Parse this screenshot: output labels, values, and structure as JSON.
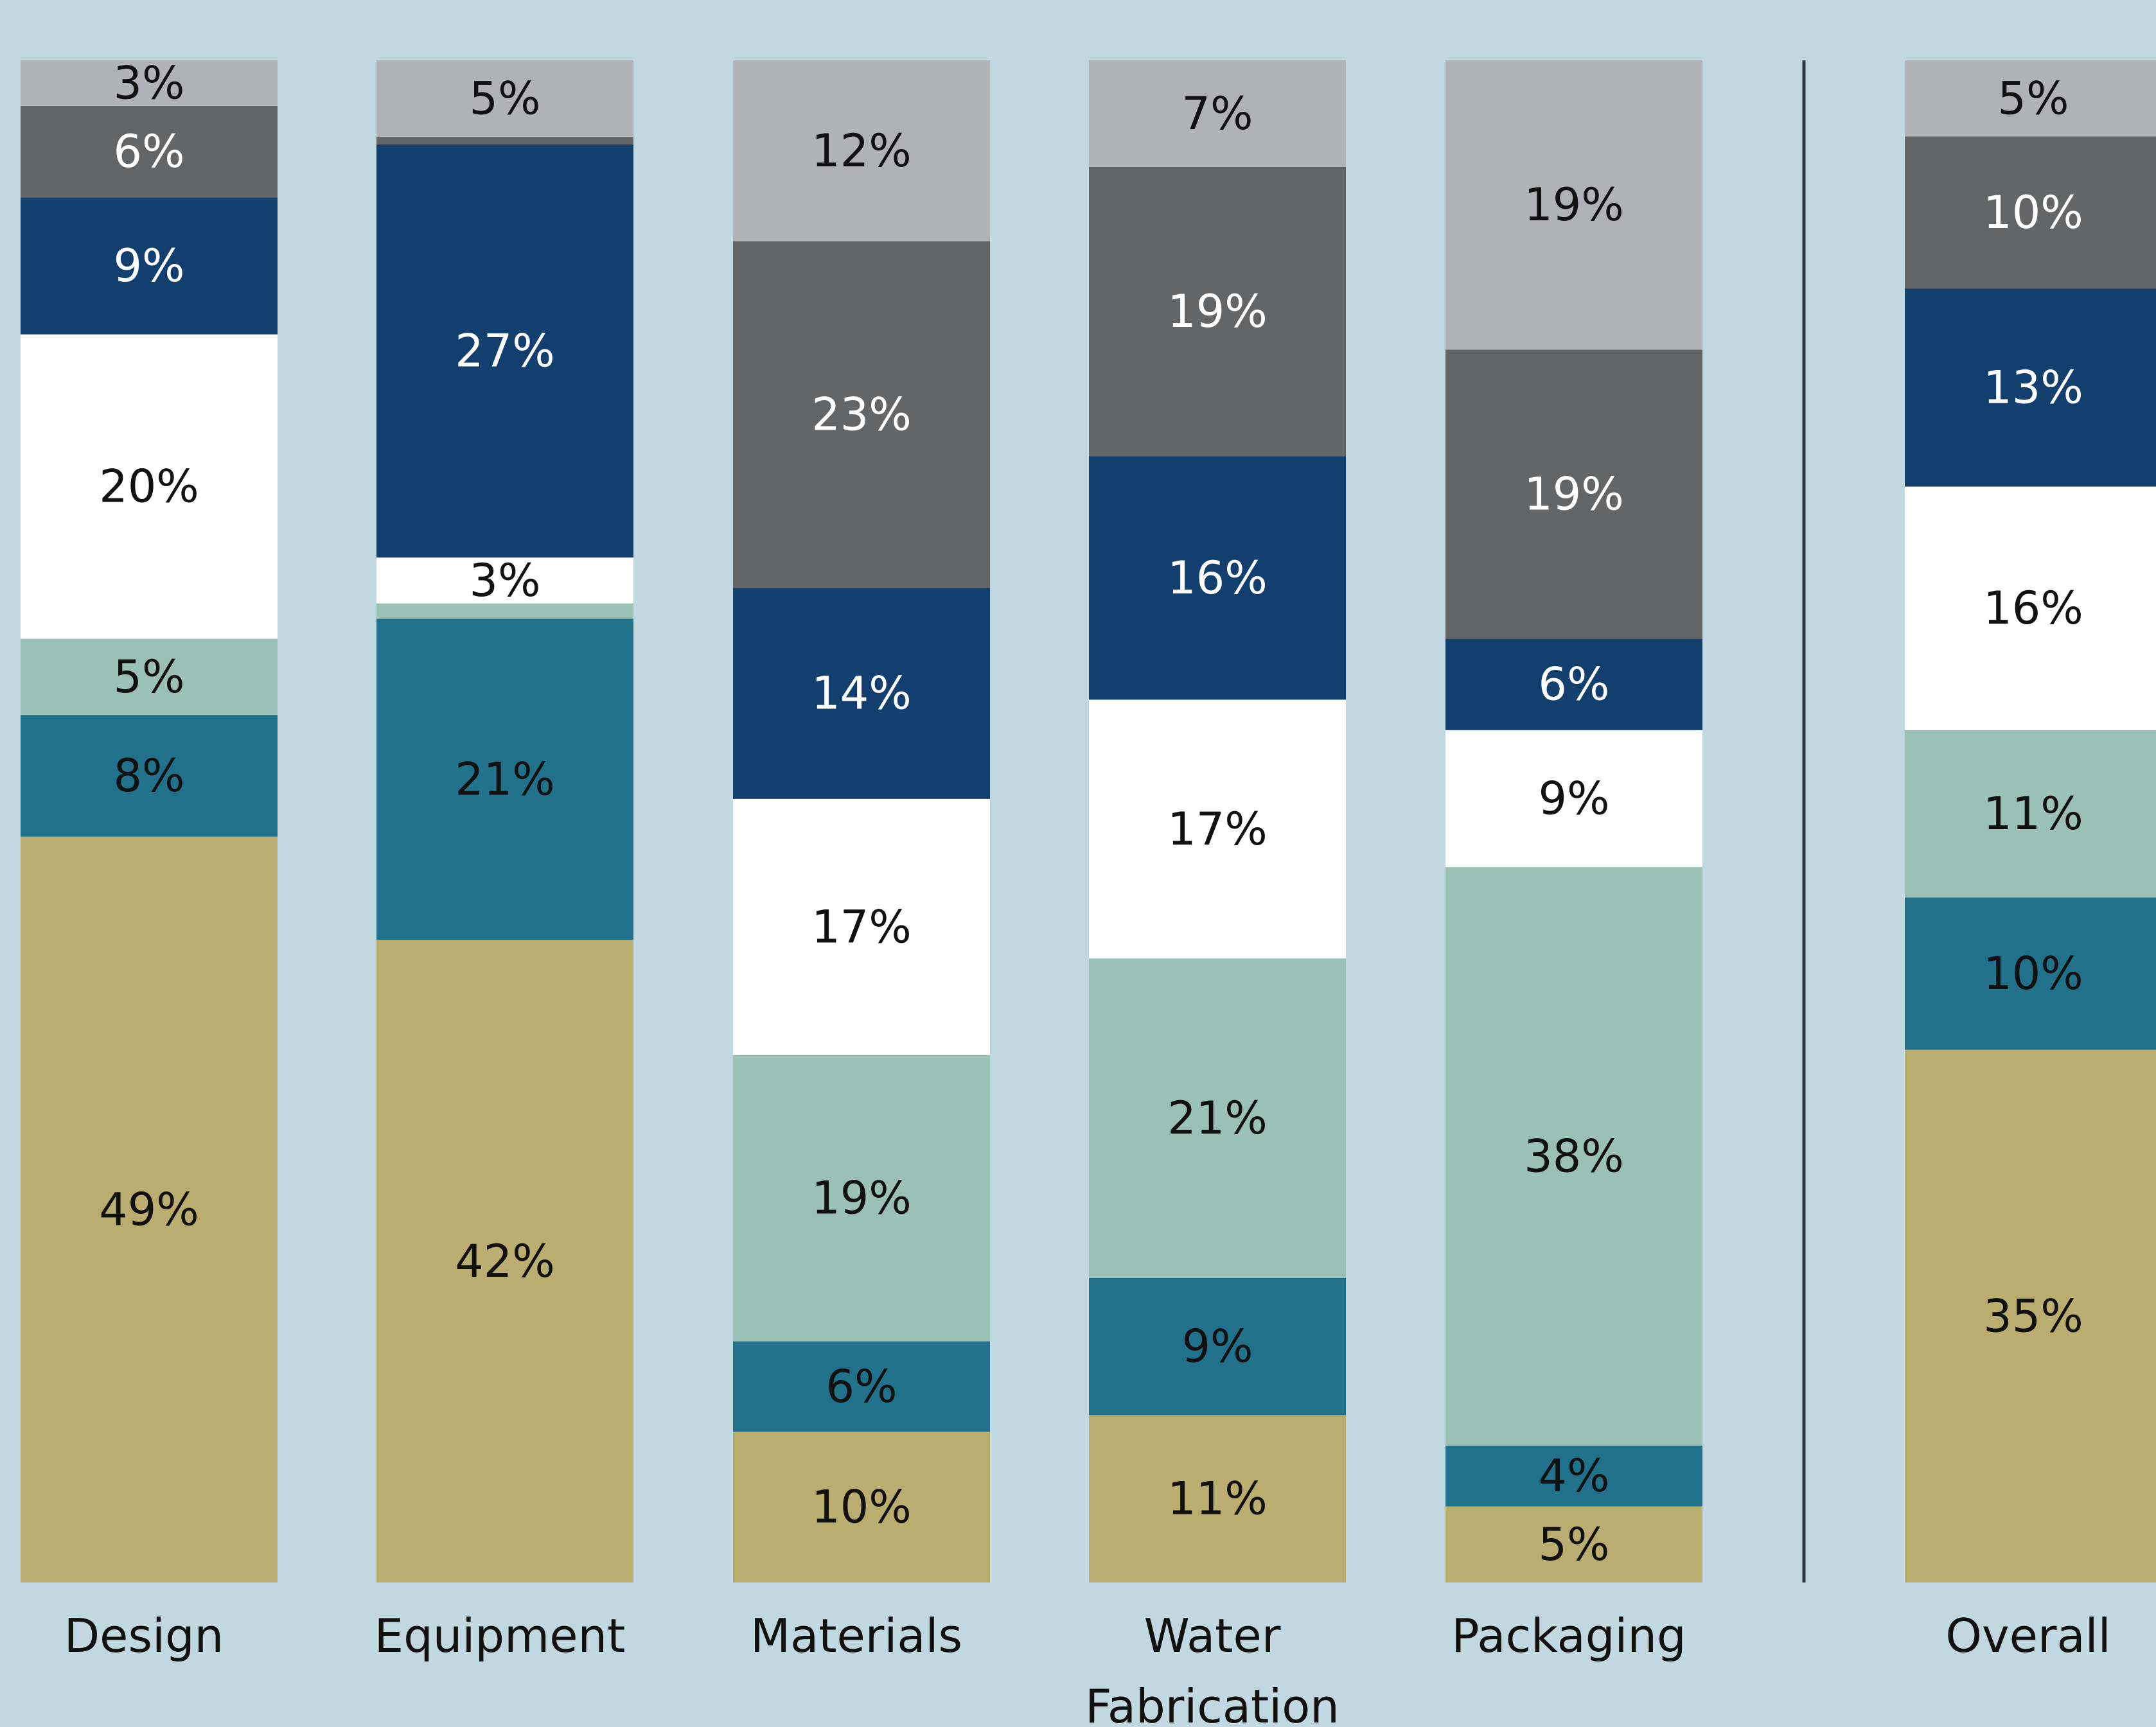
{
  "chart_data": {
    "type": "bar",
    "stacked": true,
    "normalized": true,
    "value_unit": "%",
    "categories": [
      "Design",
      "Equipment",
      "Materials",
      "Water Fabrication",
      "Packaging",
      "Overall"
    ],
    "category_label_lines": [
      [
        "Design"
      ],
      [
        "Equipment"
      ],
      [
        "Materials"
      ],
      [
        "Water",
        "Fabrication"
      ],
      [
        "Packaging"
      ],
      [
        "Overall"
      ]
    ],
    "separator_before_category": "Overall",
    "legend": "none",
    "grid": false,
    "series": [
      {
        "color": "#b9ad6f",
        "label_color": "#111111",
        "values": [
          49,
          42,
          10,
          11,
          5,
          35
        ]
      },
      {
        "color": "#22718b",
        "label_color": "#111111",
        "values": [
          8,
          21,
          6,
          9,
          4,
          10
        ]
      },
      {
        "color": "#9bc1b7",
        "label_color": "#111111",
        "values": [
          5,
          1,
          19,
          21,
          38,
          11
        ]
      },
      {
        "color": "#ffffff",
        "label_color": "#111111",
        "values": [
          20,
          3,
          17,
          17,
          9,
          16
        ]
      },
      {
        "color": "#133f6e",
        "label_color": "#ffffff",
        "values": [
          9,
          27,
          14,
          16,
          6,
          13
        ]
      },
      {
        "color": "#646567",
        "label_color": "#ffffff",
        "values": [
          6,
          0.5,
          23,
          19,
          19,
          10
        ]
      },
      {
        "color": "#b1b2b5",
        "label_color": "#111111",
        "values": [
          3,
          5,
          12,
          7,
          19,
          5
        ]
      }
    ],
    "hidden_labels": [
      [],
      [],
      [],
      [],
      [],
      []
    ],
    "unlabeled_segments": [
      {
        "category": "Equipment",
        "series_index": 2
      },
      {
        "category": "Equipment",
        "series_index": 5
      }
    ]
  }
}
